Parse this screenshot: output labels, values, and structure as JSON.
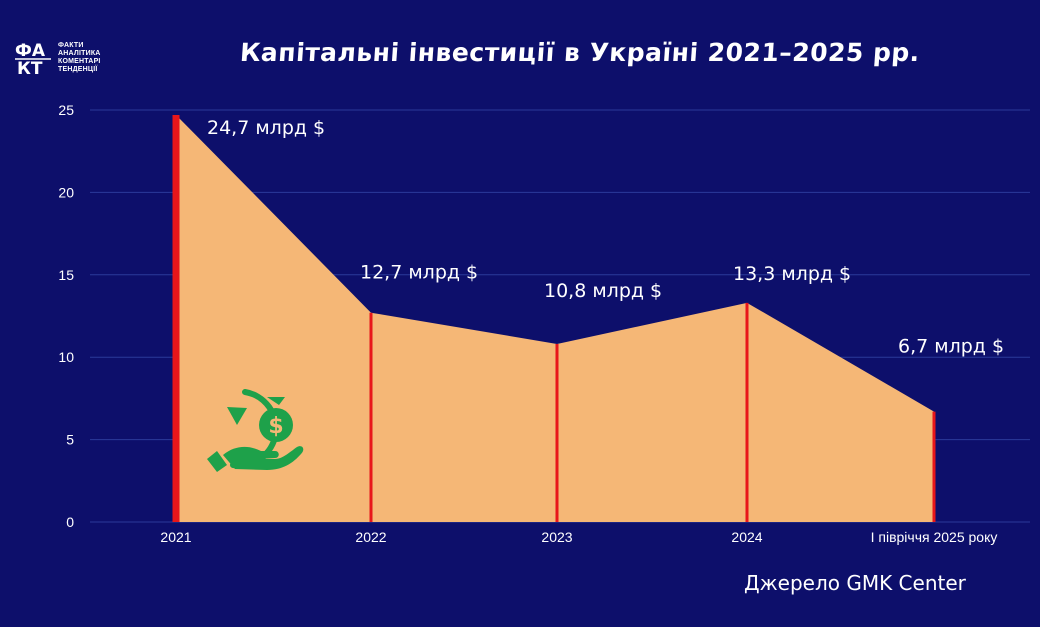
{
  "header": {
    "title": "Капітальні інвестиції в Україні 2021–2025 рр.",
    "logo_mark": "ФАКТ",
    "logo_lines": [
      "ФАКТИ",
      "АНАЛІТИКА",
      "КОМЕНТАРІ",
      "ТЕНДЕНЦІЇ"
    ]
  },
  "footer": {
    "source": "Джерело GMK Center"
  },
  "colors": {
    "background": "#0d0f6b",
    "area_fill": "#f5b776",
    "marker_line": "#e8161a",
    "gridline": "#2b3a9a",
    "icon_green": "#1ea14a"
  },
  "icons": [
    "money-hand-cycle-icon"
  ],
  "chart_data": {
    "type": "area",
    "categories": [
      "2021",
      "2022",
      "2023",
      "2024",
      "І півріччя 2025 року"
    ],
    "values": [
      24.7,
      12.7,
      10.8,
      13.3,
      6.7
    ],
    "data_labels": [
      "24,7 млрд $",
      "12,7 млрд $",
      "10,8 млрд $",
      "13,3 млрд $",
      "6,7 млрд $"
    ],
    "ylim": [
      0,
      25
    ],
    "yticks": [
      0,
      5,
      10,
      15,
      20,
      25
    ],
    "grid": true,
    "legend": "none"
  }
}
